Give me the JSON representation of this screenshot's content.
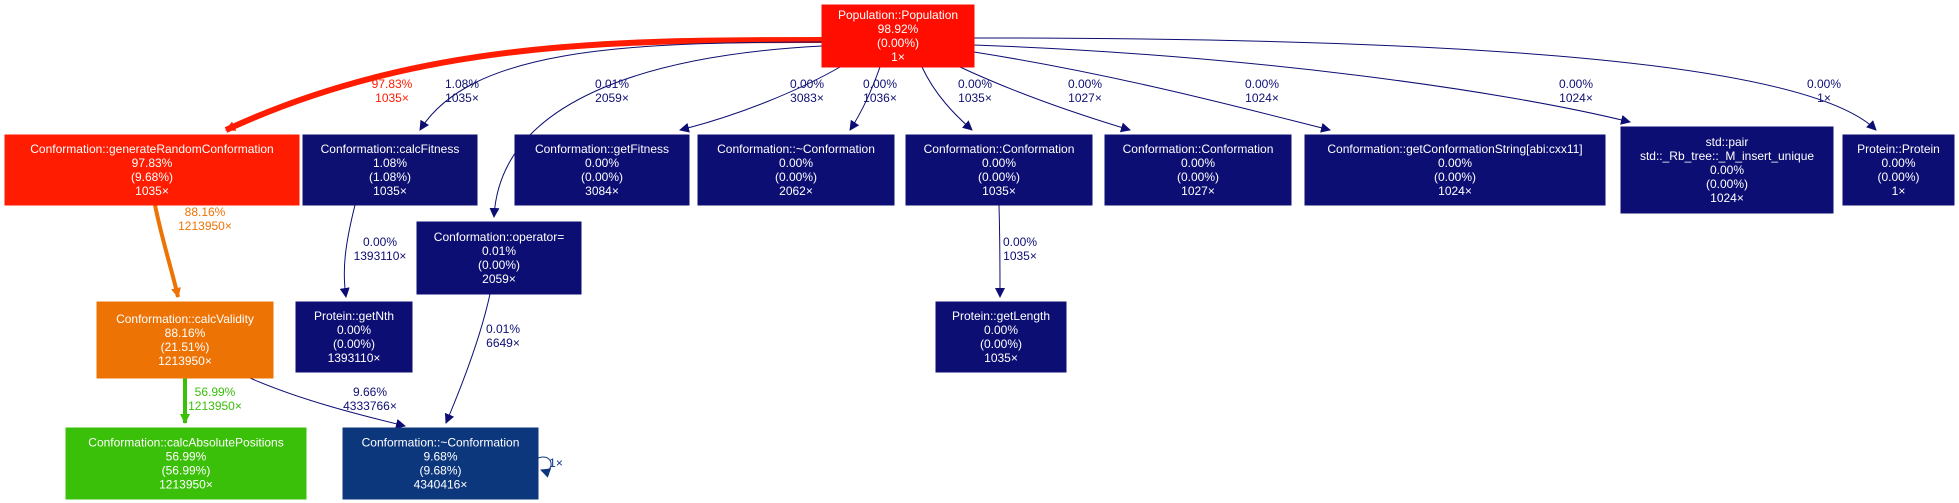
{
  "nodes": [
    {
      "id": "population",
      "lines": [
        "Population::Population",
        "98.92%",
        "(0.00%)",
        "1×"
      ],
      "color": "#ff0d00"
    },
    {
      "id": "generate",
      "lines": [
        "Conformation::generateRandomConformation",
        "97.83%",
        "(9.68%)",
        "1035×"
      ],
      "color": "#ff1c00"
    },
    {
      "id": "calcfitness",
      "lines": [
        "Conformation::calcFitness",
        "1.08%",
        "(1.08%)",
        "1035×"
      ],
      "color": "#0d1070"
    },
    {
      "id": "getfitness",
      "lines": [
        "Conformation::getFitness",
        "0.00%",
        "(0.00%)",
        "3084×"
      ],
      "color": "#0d0e73"
    },
    {
      "id": "dtor2062",
      "lines": [
        "Conformation::~Conformation",
        "0.00%",
        "(0.00%)",
        "2062×"
      ],
      "color": "#0d0e73"
    },
    {
      "id": "ctor1035",
      "lines": [
        "Conformation::Conformation",
        "0.00%",
        "(0.00%)",
        "1035×"
      ],
      "color": "#0d0e73"
    },
    {
      "id": "ctor1027",
      "lines": [
        "Conformation::Conformation",
        "0.00%",
        "(0.00%)",
        "1027×"
      ],
      "color": "#0d0e73"
    },
    {
      "id": "getstring",
      "lines": [
        "Conformation::getConformationString[abi:cxx11]",
        "0.00%",
        "(0.00%)",
        "1024×"
      ],
      "color": "#0d0e73"
    },
    {
      "id": "pair",
      "lines": [
        "std::pair",
        "std::_Rb_tree::_M_insert_unique",
        "0.00%",
        "(0.00%)",
        "1024×"
      ],
      "color": "#0d0e73"
    },
    {
      "id": "protein",
      "lines": [
        "Protein::Protein",
        "0.00%",
        "(0.00%)",
        "1×"
      ],
      "color": "#0d0e73"
    },
    {
      "id": "operator",
      "lines": [
        "Conformation::operator=",
        "0.01%",
        "(0.00%)",
        "2059×"
      ],
      "color": "#0d0e73"
    },
    {
      "id": "calcvalidity",
      "lines": [
        "Conformation::calcValidity",
        "88.16%",
        "(21.51%)",
        "1213950×"
      ],
      "color": "#ee7305"
    },
    {
      "id": "getnth",
      "lines": [
        "Protein::getNth",
        "0.00%",
        "(0.00%)",
        "1393110×"
      ],
      "color": "#0d0e73"
    },
    {
      "id": "getlength",
      "lines": [
        "Protein::getLength",
        "0.00%",
        "(0.00%)",
        "1035×"
      ],
      "color": "#0d0e73"
    },
    {
      "id": "abspos",
      "lines": [
        "Conformation::calcAbsolutePositions",
        "56.99%",
        "(56.99%)",
        "1213950×"
      ],
      "color": "#3ac009"
    },
    {
      "id": "dtor4340416",
      "lines": [
        "Conformation::~Conformation",
        "9.68%",
        "(9.68%)",
        "4340416×"
      ],
      "color": "#0d377d"
    }
  ],
  "edges": [
    {
      "id": "pop-generate",
      "lines": [
        "97.83%",
        "1035×"
      ],
      "color": "#ff1c00"
    },
    {
      "id": "pop-calcfitness",
      "lines": [
        "1.08%",
        "1035×"
      ],
      "color": "#0d1070"
    },
    {
      "id": "pop-operator",
      "lines": [
        "0.01%",
        "2059×"
      ],
      "color": "#0d0e73"
    },
    {
      "id": "pop-getfitness",
      "lines": [
        "0.00%",
        "3083×"
      ],
      "color": "#0d0e73"
    },
    {
      "id": "pop-dtor2062",
      "lines": [
        "0.00%",
        "1036×"
      ],
      "color": "#0d0e73"
    },
    {
      "id": "pop-ctor1035",
      "lines": [
        "0.00%",
        "1035×"
      ],
      "color": "#0d0e73"
    },
    {
      "id": "pop-ctor1027",
      "lines": [
        "0.00%",
        "1027×"
      ],
      "color": "#0d0e73"
    },
    {
      "id": "pop-getstring",
      "lines": [
        "0.00%",
        "1024×"
      ],
      "color": "#0d0e73"
    },
    {
      "id": "pop-pair",
      "lines": [
        "0.00%",
        "1024×"
      ],
      "color": "#0d0e73"
    },
    {
      "id": "pop-protein",
      "lines": [
        "0.00%",
        "1×"
      ],
      "color": "#0d0e73"
    },
    {
      "id": "generate-calcvalidity",
      "lines": [
        "88.16%",
        "1213950×"
      ],
      "color": "#ee7305"
    },
    {
      "id": "calcfitness-getnth",
      "lines": [
        "0.00%",
        "1393110×"
      ],
      "color": "#0d0e73"
    },
    {
      "id": "ctor1035-getlength",
      "lines": [
        "0.00%",
        "1035×"
      ],
      "color": "#0d0e73"
    },
    {
      "id": "operator-dtor",
      "lines": [
        "0.01%",
        "6649×"
      ],
      "color": "#0d0e73"
    },
    {
      "id": "calcvalidity-abspos",
      "lines": [
        "56.99%",
        "1213950×"
      ],
      "color": "#3ac009"
    },
    {
      "id": "calcvalidity-dtor",
      "lines": [
        "9.66%",
        "4333766×"
      ],
      "color": "#0d0e73"
    },
    {
      "id": "dtor-self",
      "lines": [
        "1×"
      ],
      "color": "#0d377d"
    }
  ]
}
